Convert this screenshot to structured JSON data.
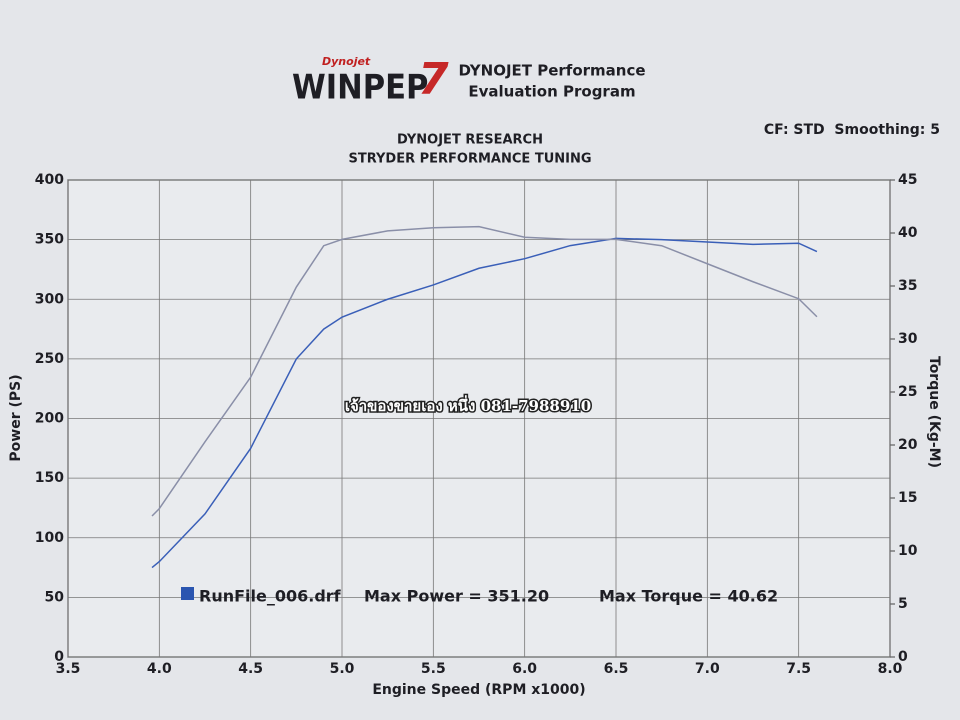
{
  "chart_data": {
    "type": "line",
    "logo_brand": "Dynojet",
    "logo": "WINPEP",
    "logo_number": "7",
    "header": [
      "DYNOJET Performance",
      "Evaluation Program"
    ],
    "title": "DYNOJET RESEARCH",
    "subtitle": "STRYDER PERFORMANCE TUNING",
    "settings_note": "CF: STD  Smoothing: 5",
    "xlabel": "Engine Speed (RPM x1000)",
    "ylabel": "Power (PS)",
    "y2label": "Torque (Kg-M)",
    "watermark": "เจ้าของขายเอง หนึ่ง 081-7988910",
    "legend": {
      "file": "RunFile_006.drf",
      "max_power": "Max Power = 351.20",
      "max_torque": "Max Torque = 40.62",
      "color": "#2a55b0"
    },
    "x": [
      3.96,
      4.0,
      4.25,
      4.5,
      4.75,
      4.9,
      5.0,
      5.25,
      5.5,
      5.75,
      6.0,
      6.25,
      6.5,
      6.75,
      7.0,
      7.25,
      7.5,
      7.6
    ],
    "series": [
      {
        "color": "#3a5fb8",
        "values": [
          75,
          80,
          120,
          175,
          250,
          275,
          285,
          300,
          312,
          326,
          334,
          345,
          351,
          350,
          348,
          346,
          347,
          340
        ]
      },
      {
        "color": "#8a8fa8",
        "axis": "y2",
        "values": [
          13.3,
          14,
          20.3,
          26.4,
          34.9,
          38.8,
          39.4,
          40.2,
          40.5,
          40.6,
          39.6,
          39.4,
          39.4,
          38.8,
          37.1,
          35.4,
          33.8,
          32.1
        ]
      }
    ],
    "xlim": [
      3.5,
      8.0
    ],
    "xticks": [
      3.5,
      {
        "value": 4,
        "label": "4.0"
      },
      4.5,
      {
        "value": 5,
        "label": "5.0"
      },
      5.5,
      {
        "value": 6,
        "label": "6.0"
      },
      6.5,
      {
        "value": 7,
        "label": "7.0"
      },
      7.5,
      {
        "value": 8,
        "label": "8.0"
      }
    ],
    "ylim": [
      0,
      400
    ],
    "yticks": [
      0,
      50,
      100,
      150,
      200,
      250,
      300,
      350,
      400
    ],
    "y2lim": [
      0,
      45
    ],
    "y2ticks": [
      0,
      5,
      10,
      15,
      20,
      25,
      30,
      35,
      40,
      45
    ],
    "grid": true
  }
}
